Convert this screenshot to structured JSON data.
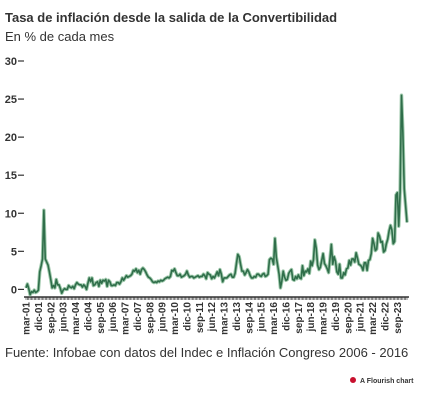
{
  "chart_data": {
    "type": "line",
    "title": "Tasa de inflación desde la salida de la Convertibilidad",
    "subtitle": "En % de cada mes",
    "source": "Fuente: Infobae con datos del Indec e Inflación Congreso 2006 - 2016",
    "credit": "A Flourish chart",
    "categories": [
      "mar-01",
      null,
      null,
      null,
      null,
      null,
      null,
      null,
      null,
      "dic-01",
      null,
      null,
      null,
      null,
      null,
      null,
      null,
      null,
      "sep-02",
      null,
      null,
      null,
      null,
      null,
      null,
      null,
      null,
      "jun-03",
      null,
      null,
      null,
      null,
      null,
      null,
      null,
      null,
      "mar-04",
      null,
      null,
      null,
      null,
      null,
      null,
      null,
      null,
      "dic-04",
      null,
      null,
      null,
      null,
      null,
      null,
      null,
      null,
      "sep-05",
      null,
      null,
      null,
      null,
      null,
      null,
      null,
      null,
      "jun-06",
      null,
      null,
      null,
      null,
      null,
      null,
      null,
      null,
      "mar-07",
      null,
      null,
      null,
      null,
      null,
      null,
      null,
      null,
      "dic-07",
      null,
      null,
      null,
      null,
      null,
      null,
      null,
      null,
      "sep-08",
      null,
      null,
      null,
      null,
      null,
      null,
      null,
      null,
      "jun-09",
      null,
      null,
      null,
      null,
      null,
      null,
      null,
      null,
      "mar-10",
      null,
      null,
      null,
      null,
      null,
      null,
      null,
      null,
      "dic-10",
      null,
      null,
      null,
      null,
      null,
      null,
      null,
      null,
      "sep-11",
      null,
      null,
      null,
      null,
      null,
      null,
      null,
      null,
      "jun-12",
      null,
      null,
      null,
      null,
      null,
      null,
      null,
      null,
      "mar-13",
      null,
      null,
      null,
      null,
      null,
      null,
      null,
      null,
      "dic-13",
      null,
      null,
      null,
      null,
      null,
      null,
      null,
      null,
      "sep-14",
      null,
      null,
      null,
      null,
      null,
      null,
      null,
      null,
      "jun-15",
      null,
      null,
      null,
      null,
      null,
      null,
      null,
      null,
      "mar-16",
      null,
      null,
      null,
      null,
      null,
      null,
      null,
      null,
      "dic-16",
      null,
      null,
      null,
      null,
      null,
      null,
      null,
      null,
      "sep-17",
      null,
      null,
      null,
      null,
      null,
      null,
      null,
      null,
      "jun-18",
      null,
      null,
      null,
      null,
      null,
      null,
      null,
      null,
      "mar-19",
      null,
      null,
      null,
      null,
      null,
      null,
      null,
      null,
      "dic-19",
      null,
      null,
      null,
      null,
      null,
      null,
      null,
      null,
      "sep-20",
      null,
      null,
      null,
      null,
      null,
      null,
      null,
      null,
      "jun-21",
      null,
      null,
      null,
      null,
      null,
      null,
      null,
      null,
      "mar-22",
      null,
      null,
      null,
      null,
      null,
      null,
      null,
      null,
      "dic-22",
      null,
      null,
      null,
      null,
      null,
      null,
      null,
      null,
      "sep-23",
      null,
      null,
      null,
      null,
      null,
      null,
      null
    ],
    "values": [
      0.2,
      0.7,
      0.1,
      -0.7,
      -0.3,
      -0.4,
      -0.1,
      -0.4,
      -0.3,
      -0.1,
      2.3,
      3.1,
      4.0,
      10.4,
      4.0,
      3.6,
      3.2,
      2.3,
      1.3,
      0.2,
      0.5,
      0.2,
      1.3,
      0.6,
      0.6,
      0.1,
      -0.5,
      -0.1,
      0.1,
      0.0,
      0.0,
      0.5,
      0.3,
      0.2,
      0.4,
      0.1,
      0.6,
      0.9,
      0.7,
      0.6,
      0.6,
      0.3,
      0.6,
      0.4,
      0.0,
      0.8,
      1.5,
      1.0,
      1.5,
      0.5,
      0.6,
      0.9,
      1.0,
      0.4,
      1.2,
      0.8,
      1.2,
      1.1,
      1.3,
      0.4,
      1.2,
      1.0,
      0.5,
      0.5,
      0.6,
      0.5,
      0.9,
      0.9,
      0.7,
      1.0,
      1.5,
      1.2,
      1.5,
      1.8,
      1.6,
      1.7,
      1.8,
      2.0,
      2.5,
      2.4,
      2.7,
      2.2,
      2.5,
      2.0,
      2.6,
      2.8,
      2.6,
      2.3,
      1.9,
      1.6,
      1.5,
      1.3,
      1.0,
      0.9,
      1.0,
      0.9,
      1.1,
      1.0,
      1.2,
      1.1,
      1.2,
      1.4,
      1.5,
      1.6,
      1.5,
      1.7,
      2.5,
      2.4,
      2.7,
      2.2,
      1.8,
      1.8,
      2.0,
      1.6,
      1.7,
      1.8,
      2.0,
      2.4,
      1.9,
      1.6,
      1.7,
      1.7,
      1.5,
      1.6,
      1.7,
      1.8,
      1.6,
      1.7,
      1.7,
      2.0,
      1.8,
      1.4,
      2.2,
      2.0,
      1.9,
      1.4,
      1.7,
      1.5,
      1.9,
      2.3,
      1.8,
      2.6,
      2.0,
      1.0,
      1.5,
      1.5,
      1.5,
      1.7,
      1.9,
      2.0,
      1.6,
      1.6,
      2.1,
      3.4,
      4.6,
      4.3,
      3.3,
      2.4,
      2.4,
      1.9,
      2.2,
      2.6,
      2.3,
      1.8,
      1.5,
      1.5,
      1.7,
      1.6,
      2.0,
      2.0,
      1.8,
      1.7,
      2.0,
      2.1,
      1.7,
      1.8,
      2.0,
      3.9,
      4.1,
      4.0,
      3.3,
      6.7,
      4.2,
      3.1,
      2.0,
      0.2,
      1.1,
      2.4,
      1.6,
      1.2,
      1.3,
      2.1,
      2.4,
      2.6,
      1.3,
      1.2,
      1.7,
      1.4,
      1.9,
      1.5,
      1.4,
      3.1,
      1.8,
      2.4,
      2.3,
      2.7,
      2.1,
      3.7,
      3.1,
      3.9,
      6.5,
      5.4,
      3.2,
      2.6,
      2.9,
      3.8,
      4.7,
      3.4,
      3.1,
      2.7,
      2.2,
      4.0,
      5.9,
      3.3,
      4.3,
      3.7,
      2.3,
      2.0,
      3.3,
      1.5,
      1.5,
      2.2,
      1.9,
      2.7,
      2.8,
      3.8,
      3.2,
      4.0,
      4.0,
      3.6,
      4.8,
      4.1,
      3.3,
      3.2,
      3.0,
      2.5,
      3.5,
      3.5,
      2.5,
      3.8,
      3.9,
      4.7,
      6.7,
      6.0,
      5.1,
      5.3,
      7.4,
      7.0,
      6.2,
      6.3,
      4.9,
      5.1,
      6.0,
      6.6,
      7.7,
      8.4,
      7.8,
      6.0,
      6.3,
      12.4,
      12.7,
      8.3,
      12.8,
      25.5,
      20.6,
      13.2,
      11.0,
      8.8
    ],
    "color": "#2f6e4a",
    "ylim": [
      -1,
      30
    ],
    "yticks": [
      0,
      5,
      10,
      15,
      20,
      25,
      30
    ]
  }
}
